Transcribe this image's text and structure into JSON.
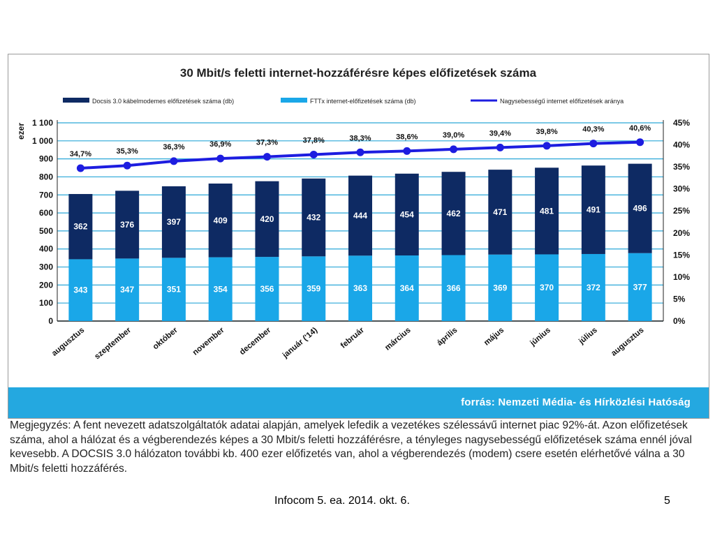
{
  "chart_data": {
    "type": "bar",
    "stacked": true,
    "title": "30 Mbit/s feletti internet-hozzáférésre képes előfizetések száma",
    "ylabel": "ezer",
    "ylim": [
      0,
      1100
    ],
    "y_ticks": [
      "0",
      "100",
      "200",
      "300",
      "400",
      "500",
      "600",
      "700",
      "800",
      "900",
      "1 000",
      "1 100"
    ],
    "y2lim": [
      0,
      45
    ],
    "y2_ticks": [
      "0%",
      "5%",
      "10%",
      "15%",
      "20%",
      "25%",
      "30%",
      "35%",
      "40%",
      "45%"
    ],
    "categories": [
      "augusztus",
      "szeptember",
      "október",
      "november",
      "december",
      "január ('14)",
      "február",
      "március",
      "április",
      "május",
      "június",
      "július",
      "augusztus"
    ],
    "series": [
      {
        "name": "FTTx internet-előfizetések száma (db)",
        "color": "#1aa7e8",
        "values": [
          343,
          347,
          351,
          354,
          356,
          359,
          363,
          364,
          366,
          369,
          370,
          372,
          377
        ]
      },
      {
        "name": "Docsis 3.0 kábelmodemes előfizetések száma (db)",
        "color": "#0e2a63",
        "values": [
          362,
          376,
          397,
          409,
          420,
          432,
          444,
          454,
          462,
          471,
          481,
          491,
          496
        ]
      },
      {
        "name": "Nagysebességű internet előfizetések aránya",
        "color": "#1d1de0",
        "type": "line",
        "axis": "right",
        "values": [
          34.7,
          35.3,
          36.3,
          36.9,
          37.3,
          37.8,
          38.3,
          38.6,
          39.0,
          39.4,
          39.8,
          40.3,
          40.6
        ],
        "labels": [
          "34,7%",
          "35,3%",
          "36,3%",
          "36,9%",
          "37,3%",
          "37,8%",
          "38,3%",
          "38,6%",
          "39,0%",
          "39,4%",
          "39,8%",
          "40,3%",
          "40,6%"
        ]
      }
    ],
    "grid": true,
    "legend": "top"
  },
  "source": "forrás: Nemzeti Média- és Hírközlési Hatóság",
  "note": "Megjegyzés: A fent nevezett adatszolgáltatók adatai alapján, amelyek lefedik a vezetékes szélessávű internet piac 92%-át. Azon előfizetések száma, ahol a hálózat és a végberendezés képes a 30 Mbit/s feletti hozzáférésre, a tényleges nagysebességű előfizetések száma ennél jóval kevesebb. A DOCSIS 3.0 hálózaton további kb. 400 ezer előfizetés van, ahol a végberendezés (modem) csere esetén elérhetővé válna a 30 Mbit/s feletti hozzáférés.",
  "footer": "Infocom 5. ea. 2014. okt. 6.",
  "page_number": "5"
}
